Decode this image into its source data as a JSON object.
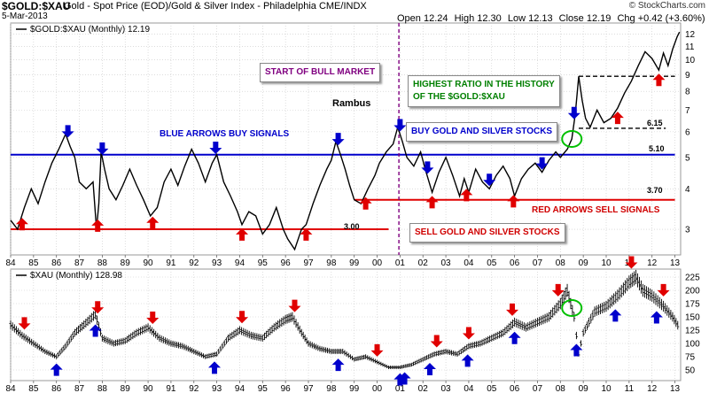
{
  "header": {
    "symbol": "$GOLD:$XAU",
    "description": "Gold - Spot Price (EOD)/Gold & Silver Index - Philadelphia  CME/INDX",
    "date": "5-Mar-2013",
    "ohlc": {
      "open": "Open 12.24",
      "high": "High 12.30",
      "low": "Low 12.13",
      "close": "Close 12.19",
      "change": "Chg +0.42 (+3.60%)",
      "change_arrow": "▲"
    },
    "credit": "© StockCharts.com"
  },
  "annotations": {
    "start_bull": "START OF BULL MARKET",
    "highest_ratio_1": "HIGHEST RATIO IN THE HISTORY",
    "highest_ratio_2": "OF THE $GOLD:$XAU",
    "buy_stocks": "BUY GOLD AND SILVER STOCKS",
    "sell_stocks": "SELL GOLD AND SILVER STOCKS",
    "blue_arrows": "BLUE ARROWS BUY SIGNALS",
    "red_arrows": "RED ARROWS SELL SIGNALS",
    "rambus": "Rambus",
    "level_300": "3.00",
    "level_370": "3.70",
    "level_510": "5.10",
    "level_615": "6.15"
  },
  "colors": {
    "blue": "#0000cc",
    "red": "#e00000",
    "green": "#00c000",
    "purple": "#800080",
    "grid": "#c8c8c8"
  },
  "chart_data": [
    {
      "type": "line",
      "legend": "$GOLD:$XAU (Monthly) 12.19",
      "scale": "log",
      "ylim": [
        2.5,
        13
      ],
      "yticks": [
        3,
        4,
        5,
        6,
        7,
        8,
        9,
        10,
        11,
        12
      ],
      "x_tick_labels": [
        "84",
        "85",
        "86",
        "87",
        "88",
        "89",
        "90",
        "91",
        "92",
        "93",
        "94",
        "95",
        "96",
        "97",
        "98",
        "99",
        "00",
        "01",
        "02",
        "03",
        "04",
        "05",
        "06",
        "07",
        "08",
        "09",
        "10",
        "11",
        "12",
        "13"
      ],
      "xlim": [
        1984,
        2013.25
      ],
      "grid": true,
      "legend_position": "top-left",
      "series": [
        {
          "x": [
            1984.0,
            1984.3,
            1984.6,
            1984.9,
            1985.2,
            1985.5,
            1985.8,
            1986.1,
            1986.4,
            1986.6,
            1986.8,
            1987.0,
            1987.3,
            1987.6,
            1987.75,
            1987.85,
            1987.95,
            1988.1,
            1988.3,
            1988.6,
            1988.9,
            1989.2,
            1989.5,
            1989.8,
            1990.1,
            1990.4,
            1990.7,
            1991.0,
            1991.3,
            1991.6,
            1991.9,
            1992.2,
            1992.5,
            1992.8,
            1993.0,
            1993.3,
            1993.6,
            1993.9,
            1994.1,
            1994.4,
            1994.7,
            1995.0,
            1995.3,
            1995.6,
            1995.9,
            1996.1,
            1996.4,
            1996.7,
            1996.9,
            1997.2,
            1997.5,
            1997.8,
            1998.0,
            1998.2,
            1998.4,
            1998.6,
            1998.8,
            1999.0,
            1999.3,
            1999.6,
            1999.9,
            2000.1,
            2000.4,
            2000.7,
            2000.9,
            2001.1,
            2001.3,
            2001.6,
            2001.9,
            2002.1,
            2002.4,
            2002.7,
            2003.0,
            2003.3,
            2003.6,
            2003.8,
            2004.0,
            2004.3,
            2004.6,
            2004.9,
            2005.2,
            2005.5,
            2005.8,
            2006.0,
            2006.3,
            2006.6,
            2006.9,
            2007.2,
            2007.5,
            2007.8,
            2008.0,
            2008.3,
            2008.5,
            2008.65,
            2008.8,
            2008.95,
            2009.1,
            2009.3,
            2009.6,
            2009.9,
            2010.2,
            2010.5,
            2010.8,
            2011.1,
            2011.4,
            2011.7,
            2012.0,
            2012.3,
            2012.5,
            2012.7,
            2012.9,
            2013.1,
            2013.2
          ],
          "y": [
            3.2,
            3.0,
            3.5,
            4.0,
            3.6,
            4.2,
            4.8,
            5.3,
            5.9,
            5.4,
            5.0,
            4.2,
            4.0,
            4.2,
            3.0,
            3.6,
            5.2,
            4.6,
            4.0,
            3.7,
            4.1,
            4.6,
            4.1,
            3.7,
            3.3,
            3.5,
            4.2,
            4.6,
            4.1,
            4.7,
            5.3,
            4.8,
            4.2,
            4.8,
            5.1,
            4.2,
            3.8,
            3.4,
            3.1,
            3.4,
            3.3,
            2.9,
            3.1,
            3.5,
            3.0,
            2.8,
            2.6,
            3.0,
            3.1,
            3.6,
            4.1,
            4.6,
            4.9,
            5.6,
            5.1,
            4.6,
            4.1,
            3.7,
            3.6,
            4.0,
            4.4,
            4.8,
            5.2,
            5.5,
            6.2,
            5.6,
            5.0,
            4.7,
            5.2,
            4.6,
            3.9,
            4.5,
            5.0,
            4.4,
            3.8,
            4.3,
            3.9,
            4.6,
            4.2,
            4.0,
            4.4,
            4.7,
            4.3,
            3.8,
            4.3,
            4.6,
            4.8,
            4.5,
            4.9,
            5.2,
            5.0,
            5.3,
            5.7,
            6.8,
            8.9,
            7.5,
            6.6,
            6.2,
            7.0,
            6.4,
            6.6,
            7.1,
            7.9,
            8.6,
            9.6,
            10.6,
            10.1,
            9.3,
            10.5,
            9.6,
            10.8,
            11.8,
            12.19
          ]
        }
      ],
      "horizontal_lines": [
        {
          "value": 3.0,
          "from": 1984.0,
          "to": 2000.5,
          "color": "red",
          "label": "3.00"
        },
        {
          "value": 3.7,
          "from": 1999.0,
          "to": 2013.0,
          "color": "red",
          "label": "3.70"
        },
        {
          "value": 5.1,
          "from": 1984.0,
          "to": 2013.0,
          "color": "blue",
          "label": "5.10"
        },
        {
          "value": 6.15,
          "from": 2008.8,
          "to": 2012.6,
          "color": "black",
          "dashed": true,
          "label": "6.15"
        },
        {
          "value": 8.9,
          "from": 2008.8,
          "to": 2013.0,
          "color": "black",
          "dashed": true
        }
      ],
      "vertical_line": {
        "x": 2000.95,
        "color": "purple",
        "dashed": true
      },
      "buy_arrows_x": [
        1986.5,
        1988.0,
        1992.95,
        1998.3,
        2001.0,
        2002.2,
        2004.9,
        2007.2,
        2008.6
      ],
      "sell_arrows_x": [
        1984.5,
        1987.8,
        1990.2,
        1994.1,
        1996.9,
        1999.5,
        2002.4,
        2003.9,
        2005.95,
        2010.5,
        2012.3
      ],
      "highlight_circle_x": 2008.5
    },
    {
      "type": "bar",
      "legend": "$XAU (Monthly) 128.98",
      "ylim": [
        30,
        240
      ],
      "yticks": [
        50,
        75,
        100,
        125,
        150,
        175,
        200,
        225
      ],
      "x_tick_labels": [
        "84",
        "85",
        "86",
        "87",
        "88",
        "89",
        "90",
        "91",
        "92",
        "93",
        "94",
        "95",
        "96",
        "97",
        "98",
        "99",
        "00",
        "01",
        "02",
        "03",
        "04",
        "05",
        "06",
        "07",
        "08",
        "09",
        "10",
        "11",
        "12",
        "13"
      ],
      "xlim": [
        1984,
        2013.25
      ],
      "grid": true,
      "legend_position": "top-left",
      "series": [
        {
          "x": [
            1984.0,
            1984.5,
            1985.0,
            1985.5,
            1986.0,
            1986.4,
            1986.8,
            1987.2,
            1987.7,
            1988.0,
            1988.5,
            1989.0,
            1989.5,
            1990.0,
            1990.5,
            1991.0,
            1991.5,
            1992.0,
            1992.5,
            1993.0,
            1993.5,
            1994.0,
            1994.5,
            1995.0,
            1995.5,
            1996.0,
            1996.3,
            1996.7,
            1997.0,
            1997.5,
            1998.0,
            1998.5,
            1999.0,
            1999.5,
            2000.0,
            2000.5,
            2001.0,
            2001.5,
            2002.0,
            2002.5,
            2003.0,
            2003.5,
            2004.0,
            2004.5,
            2005.0,
            2005.5,
            2006.0,
            2006.5,
            2007.0,
            2007.5,
            2008.0,
            2008.3,
            2008.6,
            2008.8,
            2009.0,
            2009.5,
            2010.0,
            2010.5,
            2011.0,
            2011.3,
            2011.6,
            2012.0,
            2012.5,
            2012.9,
            2013.2
          ],
          "y": [
            135,
            115,
            100,
            85,
            75,
            95,
            120,
            135,
            155,
            110,
            100,
            105,
            120,
            130,
            110,
            100,
            95,
            85,
            75,
            80,
            110,
            125,
            115,
            110,
            130,
            145,
            150,
            120,
            100,
            90,
            85,
            85,
            70,
            75,
            65,
            55,
            55,
            60,
            70,
            80,
            85,
            80,
            95,
            100,
            110,
            120,
            140,
            130,
            140,
            150,
            175,
            200,
            150,
            80,
            120,
            160,
            170,
            190,
            215,
            225,
            200,
            190,
            170,
            150,
            129
          ]
        }
      ],
      "buy_arrows_x": [
        1986.0,
        1987.7,
        1992.9,
        1998.3,
        2001.0,
        2001.2,
        2002.3,
        2003.95,
        2006.0,
        2008.7,
        2010.4,
        2012.2
      ],
      "sell_arrows_x": [
        1984.6,
        1987.8,
        1990.2,
        1994.1,
        1996.4,
        2000.0,
        2002.6,
        2004.0,
        2005.9,
        2007.9,
        2011.1,
        2012.5
      ],
      "highlight_circle_x": 2008.5
    }
  ]
}
